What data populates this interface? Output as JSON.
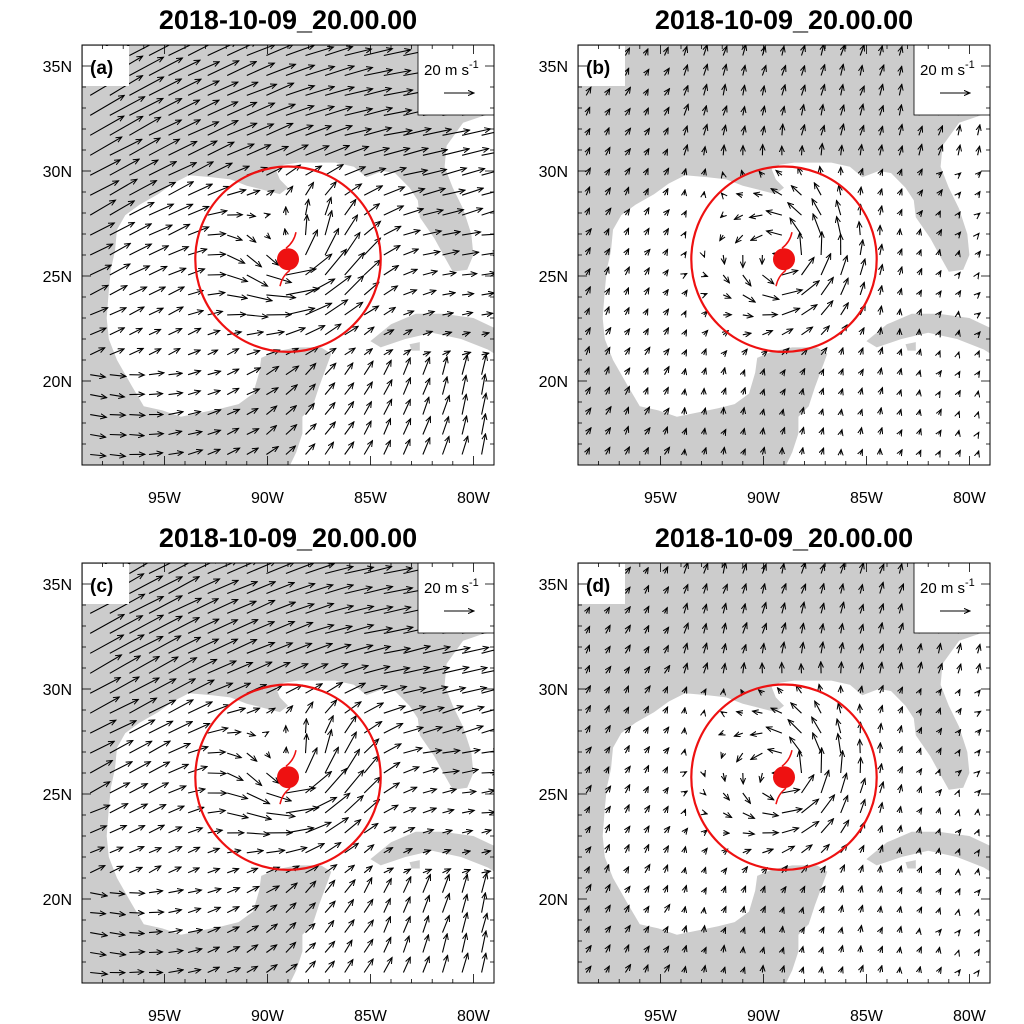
{
  "figure": {
    "panel_labels": [
      "(a)",
      "(b)",
      "(c)",
      "(d)"
    ],
    "panel_titles": [
      "2018-10-09_20.00.00",
      "2018-10-09_20.00.00",
      "2018-10-09_20.00.00",
      "2018-10-09_20.00.00"
    ],
    "lon_tick_labels": [
      "95W",
      "90W",
      "85W",
      "80W"
    ],
    "lat_tick_labels": [
      "35N",
      "30N",
      "25N",
      "20N"
    ],
    "reference_vector": {
      "label": "20 m s",
      "unit_exponent": "-1"
    }
  },
  "chart_data": {
    "type": "map-vector-field",
    "map_extent": {
      "lon": [
        -99,
        -79
      ],
      "lat": [
        16,
        36
      ]
    },
    "lon_ticks": [
      -95,
      -90,
      -85,
      -80
    ],
    "lat_ticks": [
      35,
      30,
      25,
      20
    ],
    "reference_vector_speed_ms": 20,
    "storm": {
      "lon": -89,
      "lat": 25.8,
      "circle_radius_deg": 4.5
    },
    "colors": {
      "land": "#cccccc",
      "storm": "#ee1111",
      "ocean": "#ffffff",
      "vectors": "#000000"
    },
    "panels": [
      {
        "label": "(a)",
        "title": "2018-10-09_20.00.00",
        "flow": "strong westerly flow with cyclonic circulation around storm"
      },
      {
        "label": "(b)",
        "title": "2018-10-09_20.00.00",
        "flow": "weak environmental flow with cyclonic circulation around storm"
      },
      {
        "label": "(c)",
        "title": "2018-10-09_20.00.00",
        "flow": "strong westerly flow with cyclonic circulation around storm"
      },
      {
        "label": "(d)",
        "title": "2018-10-09_20.00.00",
        "flow": "weak environmental flow with cyclonic circulation around storm"
      }
    ]
  }
}
